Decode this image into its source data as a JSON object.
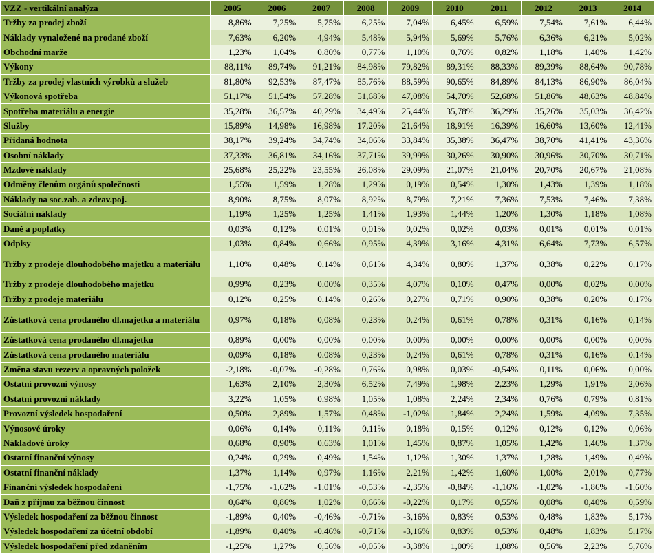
{
  "table": {
    "title": "VZZ - vertikální analýza",
    "years": [
      "2005",
      "2006",
      "2007",
      "2008",
      "2009",
      "2010",
      "2011",
      "2012",
      "2013",
      "2014"
    ],
    "rows": [
      {
        "label": "Tržby za prodej zboží",
        "values": [
          "8,86%",
          "7,25%",
          "5,75%",
          "6,25%",
          "7,04%",
          "6,45%",
          "6,59%",
          "7,54%",
          "7,61%",
          "6,44%"
        ]
      },
      {
        "label": "Náklady vynaložené na prodané zboží",
        "values": [
          "7,63%",
          "6,20%",
          "4,94%",
          "5,48%",
          "5,94%",
          "5,69%",
          "5,76%",
          "6,36%",
          "6,21%",
          "5,02%"
        ]
      },
      {
        "label": "Obchodní marže",
        "values": [
          "1,23%",
          "1,04%",
          "0,80%",
          "0,77%",
          "1,10%",
          "0,76%",
          "0,82%",
          "1,18%",
          "1,40%",
          "1,42%"
        ]
      },
      {
        "label": "Výkony",
        "values": [
          "88,11%",
          "89,74%",
          "91,21%",
          "84,98%",
          "79,82%",
          "89,31%",
          "88,33%",
          "89,39%",
          "88,64%",
          "90,78%"
        ]
      },
      {
        "label": "Tržby za prodej vlastních výrobků a služeb",
        "values": [
          "81,80%",
          "92,53%",
          "87,47%",
          "85,76%",
          "88,59%",
          "90,65%",
          "84,89%",
          "84,13%",
          "86,90%",
          "86,04%"
        ]
      },
      {
        "label": "Výkonová spotřeba",
        "values": [
          "51,17%",
          "51,54%",
          "57,28%",
          "51,68%",
          "47,08%",
          "54,70%",
          "52,68%",
          "51,86%",
          "48,63%",
          "48,84%"
        ]
      },
      {
        "label": "Spotřeba materiálu a energie",
        "values": [
          "35,28%",
          "36,57%",
          "40,29%",
          "34,49%",
          "25,44%",
          "35,78%",
          "36,29%",
          "35,26%",
          "35,03%",
          "36,42%"
        ]
      },
      {
        "label": "Služby",
        "values": [
          "15,89%",
          "14,98%",
          "16,98%",
          "17,20%",
          "21,64%",
          "18,91%",
          "16,39%",
          "16,60%",
          "13,60%",
          "12,41%"
        ]
      },
      {
        "label": "Přidaná hodnota",
        "values": [
          "38,17%",
          "39,24%",
          "34,74%",
          "34,06%",
          "33,84%",
          "35,38%",
          "36,47%",
          "38,70%",
          "41,41%",
          "43,36%"
        ]
      },
      {
        "label": "Osobní náklady",
        "values": [
          "37,33%",
          "36,81%",
          "34,16%",
          "37,71%",
          "39,99%",
          "30,26%",
          "30,90%",
          "30,96%",
          "30,70%",
          "30,71%"
        ]
      },
      {
        "label": "Mzdové náklady",
        "values": [
          "25,68%",
          "25,22%",
          "23,55%",
          "26,08%",
          "29,09%",
          "21,07%",
          "21,04%",
          "20,70%",
          "20,67%",
          "21,08%"
        ]
      },
      {
        "label": "Odměny členům orgánů společnosti",
        "values": [
          "1,55%",
          "1,59%",
          "1,28%",
          "1,29%",
          "0,19%",
          "0,54%",
          "1,30%",
          "1,43%",
          "1,39%",
          "1,18%"
        ]
      },
      {
        "label": "Náklady na soc.zab. a zdrav.poj.",
        "values": [
          "8,90%",
          "8,75%",
          "8,07%",
          "8,92%",
          "8,79%",
          "7,21%",
          "7,36%",
          "7,53%",
          "7,46%",
          "7,38%"
        ]
      },
      {
        "label": "Sociální náklady",
        "values": [
          "1,19%",
          "1,25%",
          "1,25%",
          "1,41%",
          "1,93%",
          "1,44%",
          "1,20%",
          "1,30%",
          "1,18%",
          "1,08%"
        ]
      },
      {
        "label": "Daně a poplatky",
        "values": [
          "0,03%",
          "0,12%",
          "0,01%",
          "0,01%",
          "0,02%",
          "0,02%",
          "0,03%",
          "0,01%",
          "0,01%",
          "0,01%"
        ]
      },
      {
        "label": "Odpisy",
        "values": [
          "1,03%",
          "0,84%",
          "0,66%",
          "0,95%",
          "4,39%",
          "3,16%",
          "4,31%",
          "6,64%",
          "7,73%",
          "6,57%"
        ]
      },
      {
        "label": "Tržby z prodeje dlouhodobého majetku a materiálu",
        "values": [
          "1,10%",
          "0,48%",
          "0,14%",
          "0,61%",
          "4,34%",
          "0,80%",
          "1,37%",
          "0,38%",
          "0,22%",
          "0,17%"
        ]
      },
      {
        "label": "Tržby z prodeje dlouhodobého majetku",
        "values": [
          "0,99%",
          "0,23%",
          "0,00%",
          "0,35%",
          "4,07%",
          "0,10%",
          "0,47%",
          "0,00%",
          "0,02%",
          "0,00%"
        ]
      },
      {
        "label": "Tržby z prodeje materiálu",
        "values": [
          "0,12%",
          "0,25%",
          "0,14%",
          "0,26%",
          "0,27%",
          "0,71%",
          "0,90%",
          "0,38%",
          "0,20%",
          "0,17%"
        ]
      },
      {
        "label": "Zůstatková cena prodaného dl.majetku a materiálu",
        "values": [
          "0,97%",
          "0,18%",
          "0,08%",
          "0,23%",
          "0,24%",
          "0,61%",
          "0,78%",
          "0,31%",
          "0,16%",
          "0,14%"
        ]
      },
      {
        "label": "Zůstatková cena prodaného dl.majetku",
        "values": [
          "0,89%",
          "0,00%",
          "0,00%",
          "0,00%",
          "0,00%",
          "0,00%",
          "0,00%",
          "0,00%",
          "0,00%",
          "0,00%"
        ]
      },
      {
        "label": "Zůstatková cena prodaného materiálu",
        "values": [
          "0,09%",
          "0,18%",
          "0,08%",
          "0,23%",
          "0,24%",
          "0,61%",
          "0,78%",
          "0,31%",
          "0,16%",
          "0,14%"
        ]
      },
      {
        "label": "Změna stavu rezerv a opravných položek",
        "values": [
          "-2,18%",
          "-0,07%",
          "-0,28%",
          "0,76%",
          "0,98%",
          "0,03%",
          "-0,54%",
          "0,11%",
          "0,06%",
          "0,00%"
        ]
      },
      {
        "label": "Ostatní provozní výnosy",
        "values": [
          "1,63%",
          "2,10%",
          "2,30%",
          "6,52%",
          "7,49%",
          "1,98%",
          "2,23%",
          "1,29%",
          "1,91%",
          "2,06%"
        ]
      },
      {
        "label": "Ostatní provozní náklady",
        "values": [
          "3,22%",
          "1,05%",
          "0,98%",
          "1,05%",
          "1,08%",
          "2,24%",
          "2,34%",
          "0,76%",
          "0,79%",
          "0,81%"
        ]
      },
      {
        "label": "Provozní výsledek hospodaření",
        "values": [
          "0,50%",
          "2,89%",
          "1,57%",
          "0,48%",
          "-1,02%",
          "1,84%",
          "2,24%",
          "1,59%",
          "4,09%",
          "7,35%"
        ]
      },
      {
        "label": "Výnosové úroky",
        "values": [
          "0,06%",
          "0,14%",
          "0,11%",
          "0,11%",
          "0,18%",
          "0,15%",
          "0,12%",
          "0,12%",
          "0,12%",
          "0,06%"
        ]
      },
      {
        "label": "Nákladové úroky",
        "values": [
          "0,68%",
          "0,90%",
          "0,63%",
          "1,01%",
          "1,45%",
          "0,87%",
          "1,05%",
          "1,42%",
          "1,46%",
          "1,37%"
        ]
      },
      {
        "label": "Ostatní finanční výnosy",
        "values": [
          "0,24%",
          "0,29%",
          "0,49%",
          "1,54%",
          "1,12%",
          "1,30%",
          "1,37%",
          "1,28%",
          "1,49%",
          "0,49%"
        ]
      },
      {
        "label": "Ostatní finanční náklady",
        "values": [
          "1,37%",
          "1,14%",
          "0,97%",
          "1,16%",
          "2,21%",
          "1,42%",
          "1,60%",
          "1,00%",
          "2,01%",
          "0,77%"
        ]
      },
      {
        "label": "Finanční výsledek hospodaření",
        "values": [
          "-1,75%",
          "-1,62%",
          "-1,01%",
          "-0,53%",
          "-2,35%",
          "-0,84%",
          "-1,16%",
          "-1,02%",
          "-1,86%",
          "-1,60%"
        ]
      },
      {
        "label": "Daň z příjmu za běžnou činnost",
        "values": [
          "0,64%",
          "0,86%",
          "1,02%",
          "0,66%",
          "-0,22%",
          "0,17%",
          "0,55%",
          "0,08%",
          "0,40%",
          "0,59%"
        ]
      },
      {
        "label": "Výsledek hospodaření za běžnou činnost",
        "values": [
          "-1,89%",
          "0,40%",
          "-0,46%",
          "-0,71%",
          "-3,16%",
          "0,83%",
          "0,53%",
          "0,48%",
          "1,83%",
          "5,17%"
        ]
      },
      {
        "label": "Výsledek hospodaření za účetní období",
        "values": [
          "-1,89%",
          "0,40%",
          "-0,46%",
          "-0,71%",
          "-3,16%",
          "0,83%",
          "0,53%",
          "0,48%",
          "1,83%",
          "5,17%"
        ]
      },
      {
        "label": "Výsledek hospodaření před zdaněním",
        "values": [
          "-1,25%",
          "1,27%",
          "0,56%",
          "-0,05%",
          "-3,38%",
          "1,00%",
          "1,08%",
          "0,56%",
          "2,23%",
          "5,76%"
        ]
      }
    ]
  }
}
